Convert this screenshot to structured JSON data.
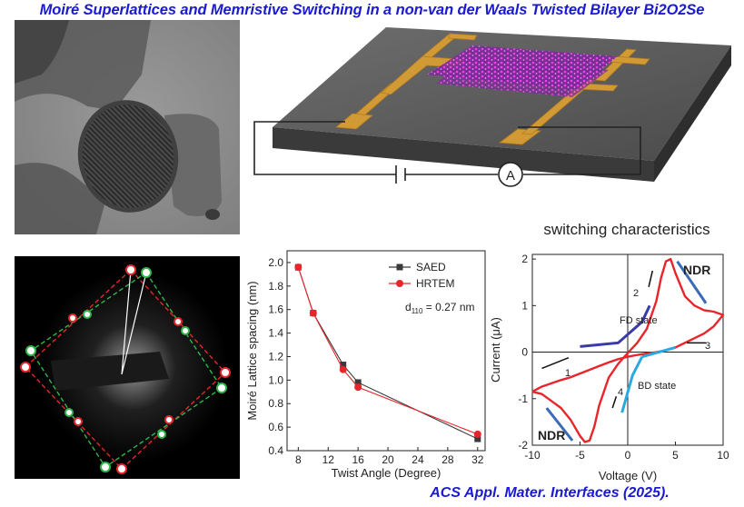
{
  "title": "Moiré Superlattices and Memristive Switching in a non-van der Waals Twisted Bilayer Bi2O2Se",
  "citation": "ACS Appl. Mater. Interfaces (2025).",
  "device_schematic": {
    "ammeter_label": "A"
  },
  "chart_data": [
    {
      "type": "line",
      "title": "",
      "xlabel": "Twist Angle (Degree)",
      "ylabel": "Moiré Lattice spacing (nm)",
      "xlim": [
        6.5,
        33
      ],
      "ylim": [
        0.4,
        2.1
      ],
      "xticks": [
        8,
        12,
        16,
        20,
        24,
        28,
        32
      ],
      "yticks": [
        0.4,
        0.6,
        0.8,
        1.0,
        1.2,
        1.4,
        1.6,
        1.8,
        2.0
      ],
      "xtick_labels": [
        "8",
        "12",
        "16",
        "20",
        "24",
        "28",
        "32"
      ],
      "ytick_labels": [
        "0.4",
        "0.6",
        "0.8",
        "1.0",
        "1.2",
        "1.4",
        "1.6",
        "1.8",
        "2.0"
      ],
      "annotation": "d110 = 0.27 nm",
      "annotation_main": "d",
      "annotation_sub": "110",
      "annotation_rest": " = 0.27 nm",
      "legend_position": "top-right",
      "series": [
        {
          "name": "SAED",
          "color": "#3a3a3a",
          "marker": "square",
          "x": [
            8,
            10,
            14,
            16,
            32
          ],
          "y": [
            1.96,
            1.57,
            1.13,
            0.98,
            0.5
          ]
        },
        {
          "name": "HRTEM",
          "color": "#e8252a",
          "marker": "circle",
          "x": [
            8,
            10,
            14,
            16,
            32
          ],
          "y": [
            1.96,
            1.57,
            1.09,
            0.94,
            0.54
          ]
        }
      ]
    },
    {
      "type": "line",
      "title": "switching characteristics",
      "xlabel": "Voltage (V)",
      "ylabel": "Current (μA)",
      "xlim": [
        -10,
        10
      ],
      "ylim": [
        -2,
        2.1
      ],
      "xticks": [
        -10,
        -5,
        0,
        5,
        10
      ],
      "yticks": [
        -2,
        -1,
        0,
        1,
        2
      ],
      "xtick_labels": [
        "-10",
        "-5",
        "0",
        "5",
        "10"
      ],
      "ytick_labels": [
        "-2",
        "-1",
        "0",
        "1",
        "2"
      ],
      "labels": {
        "fd_state": "FD state",
        "bd_state": "BD state",
        "ndr_top": "NDR",
        "ndr_bottom": "NDR"
      },
      "step_labels": [
        "1",
        "2",
        "3",
        "4"
      ],
      "series": [
        {
          "color": "#e8252a",
          "x": [
            -10,
            -9,
            -8,
            -7,
            -6,
            -5,
            -4.5,
            -4,
            -3.5,
            -3,
            -2,
            -1,
            0,
            1,
            2,
            3,
            3.5,
            4,
            4.5,
            5,
            6,
            7,
            8,
            9,
            10,
            9,
            8,
            7,
            6,
            5,
            4,
            3,
            2,
            1,
            0,
            -1,
            -2,
            -3,
            -4,
            -5,
            -6,
            -7,
            -8,
            -9,
            -10
          ],
          "y": [
            -0.85,
            -0.9,
            -1.05,
            -1.2,
            -1.45,
            -1.8,
            -1.93,
            -1.9,
            -1.6,
            -1.15,
            -0.55,
            -0.25,
            -0.02,
            0.2,
            0.5,
            1.1,
            1.6,
            1.95,
            2.0,
            1.7,
            1.2,
            1.0,
            0.9,
            0.87,
            0.8,
            0.55,
            0.4,
            0.3,
            0.2,
            0.1,
            0.04,
            0.0,
            -0.03,
            -0.06,
            -0.1,
            -0.15,
            -0.22,
            -0.3,
            -0.38,
            -0.46,
            -0.54,
            -0.6,
            -0.67,
            -0.74,
            -0.85
          ]
        }
      ]
    }
  ]
}
